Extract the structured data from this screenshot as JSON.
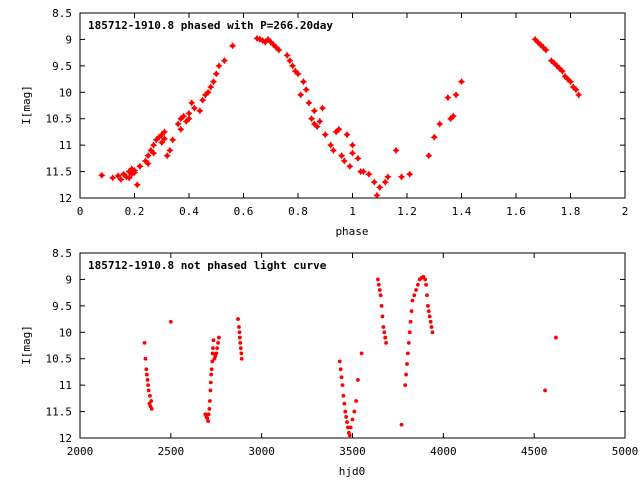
{
  "chart_data": [
    {
      "type": "scatter",
      "title": "185712-1910.8 phased with P=266.20day",
      "xlabel": "phase",
      "ylabel": "I[mag]",
      "xlim": [
        0,
        2
      ],
      "ylim": [
        12,
        8.5
      ],
      "y_inverted": true,
      "xticks": [
        "0",
        "0.2",
        "0.4",
        "0.6",
        "0.8",
        "1",
        "1.2",
        "1.4",
        "1.6",
        "1.8",
        "2"
      ],
      "yticks": [
        "8.5",
        "9",
        "9.5",
        "10",
        "10.5",
        "11",
        "11.5",
        "12"
      ],
      "grid": false,
      "marker": "star",
      "color": "#ff0000",
      "series": [
        {
          "x": [
            0.08,
            0.12,
            0.14,
            0.15,
            0.16,
            0.17,
            0.18,
            0.18,
            0.19,
            0.19,
            0.2,
            0.2,
            0.21,
            0.22,
            0.24,
            0.25,
            0.25,
            0.26,
            0.27,
            0.27,
            0.28,
            0.29,
            0.3,
            0.3,
            0.31,
            0.31,
            0.32,
            0.33,
            0.34,
            0.36,
            0.37,
            0.37,
            0.38,
            0.39,
            0.4,
            0.4,
            0.41,
            0.42,
            0.44,
            0.45,
            0.46,
            0.47,
            0.48,
            0.49,
            0.5,
            0.51,
            0.53,
            0.56,
            0.65,
            0.66,
            0.67,
            0.68,
            0.69,
            0.7,
            0.71,
            0.72,
            0.73,
            0.76,
            0.77,
            0.78,
            0.79,
            0.8,
            0.81,
            0.82,
            0.83,
            0.84,
            0.85,
            0.86,
            0.86,
            0.87,
            0.88,
            0.89,
            0.9,
            0.92,
            0.93,
            0.94,
            0.95,
            0.96,
            0.97,
            0.98,
            0.99,
            1.0,
            1.0,
            1.02,
            1.03,
            1.04,
            1.06,
            1.08,
            1.09,
            1.1,
            1.12,
            1.13,
            1.16,
            1.18,
            1.21,
            1.28,
            1.3,
            1.32,
            1.35,
            1.36,
            1.37,
            1.38,
            1.4
          ],
          "y": [
            11.57,
            11.62,
            11.58,
            11.65,
            11.55,
            11.6,
            11.5,
            11.62,
            11.45,
            11.55,
            11.48,
            11.52,
            11.75,
            11.4,
            11.3,
            11.2,
            11.35,
            11.1,
            11.0,
            11.15,
            10.9,
            10.85,
            10.8,
            10.95,
            10.75,
            10.88,
            11.2,
            11.1,
            10.9,
            10.6,
            10.5,
            10.7,
            10.45,
            10.55,
            10.4,
            10.5,
            10.2,
            10.3,
            10.35,
            10.15,
            10.05,
            10.0,
            9.9,
            9.8,
            9.65,
            9.5,
            9.4,
            9.12,
            8.98,
            9.0,
            9.02,
            9.05,
            9.0,
            9.05,
            9.1,
            9.15,
            9.2,
            9.3,
            9.4,
            9.5,
            9.6,
            9.65,
            10.05,
            9.8,
            9.95,
            10.2,
            10.5,
            10.35,
            10.6,
            10.65,
            10.55,
            10.3,
            10.8,
            11.0,
            11.1,
            10.75,
            10.7,
            11.2,
            11.3,
            10.8,
            11.4,
            11.0,
            11.15,
            11.25,
            11.5,
            11.5,
            11.55,
            11.7,
            11.95,
            11.8,
            11.7,
            11.6,
            11.1,
            11.6,
            11.55,
            11.2,
            10.85,
            10.6,
            10.1,
            10.5,
            10.45,
            10.05,
            9.8
          ]
        },
        {
          "x": [
            1.67,
            1.68,
            1.69,
            1.7,
            1.71,
            1.73,
            1.74,
            1.75,
            1.76,
            1.77,
            1.78,
            1.79,
            1.8,
            1.81,
            1.82,
            1.83
          ],
          "y": [
            9.0,
            9.05,
            9.1,
            9.15,
            9.2,
            9.4,
            9.45,
            9.5,
            9.55,
            9.6,
            9.7,
            9.75,
            9.8,
            9.9,
            9.95,
            10.05
          ]
        }
      ]
    },
    {
      "type": "scatter",
      "title": "185712-1910.8 not phased light curve",
      "xlabel": "hjd0",
      "ylabel": "I[mag]",
      "xlim": [
        2000,
        5000
      ],
      "ylim": [
        12,
        8.5
      ],
      "y_inverted": true,
      "xticks": [
        "2000",
        "2500",
        "3000",
        "3500",
        "4000",
        "4500",
        "5000"
      ],
      "yticks": [
        "8.5",
        "9",
        "9.5",
        "10",
        "10.5",
        "11",
        "11.5",
        "12"
      ],
      "grid": false,
      "marker": "dot",
      "color": "#ff0000",
      "series": [
        {
          "x": [
            2355,
            2360,
            2365,
            2368,
            2372,
            2375,
            2378,
            2382,
            2385,
            2388,
            2392,
            2395,
            2500,
            2690,
            2695,
            2700,
            2705,
            2708,
            2712,
            2715,
            2718,
            2720,
            2722,
            2725,
            2728,
            2730,
            2732,
            2735,
            2740,
            2745,
            2750,
            2755,
            2760,
            2765,
            2870,
            2875,
            2878,
            2880,
            2882,
            2885,
            2888,
            2890,
            3430,
            3435,
            3440,
            3445,
            3450,
            3455,
            3460,
            3465,
            3470,
            3475,
            3480,
            3485,
            3490,
            3500,
            3510,
            3520,
            3530,
            3550,
            3640,
            3645,
            3650,
            3655,
            3660,
            3665,
            3670,
            3675,
            3680,
            3685,
            3770,
            3790,
            3795,
            3800,
            3805,
            3810,
            3815,
            3820,
            3825,
            3830,
            3840,
            3850,
            3860,
            3870,
            3880,
            3890,
            3900,
            3905,
            3910,
            3915,
            3920,
            3925,
            3930,
            3935,
            3940,
            4560,
            4620
          ],
          "y": [
            10.2,
            10.5,
            10.7,
            10.8,
            10.9,
            11.0,
            11.1,
            11.35,
            11.2,
            11.4,
            11.3,
            11.45,
            9.8,
            11.55,
            11.6,
            11.62,
            11.68,
            11.55,
            11.45,
            11.3,
            11.1,
            10.95,
            10.8,
            10.7,
            10.55,
            10.4,
            10.3,
            10.15,
            10.5,
            10.45,
            10.4,
            10.3,
            10.2,
            10.1,
            9.75,
            9.9,
            10.0,
            10.1,
            10.2,
            10.3,
            10.4,
            10.5,
            10.55,
            10.7,
            10.85,
            11.0,
            11.2,
            11.35,
            11.5,
            11.6,
            11.7,
            11.8,
            11.9,
            11.95,
            11.8,
            11.65,
            11.5,
            11.3,
            10.9,
            10.4,
            9.0,
            9.1,
            9.2,
            9.3,
            9.5,
            9.7,
            9.9,
            10.0,
            10.1,
            10.2,
            11.75,
            11.0,
            10.8,
            10.6,
            10.4,
            10.2,
            10.0,
            9.8,
            9.6,
            9.4,
            9.3,
            9.2,
            9.1,
            9.0,
            8.97,
            8.95,
            9.0,
            9.1,
            9.3,
            9.5,
            9.6,
            9.7,
            9.8,
            9.9,
            10.0,
            11.1,
            10.1
          ]
        }
      ]
    }
  ]
}
